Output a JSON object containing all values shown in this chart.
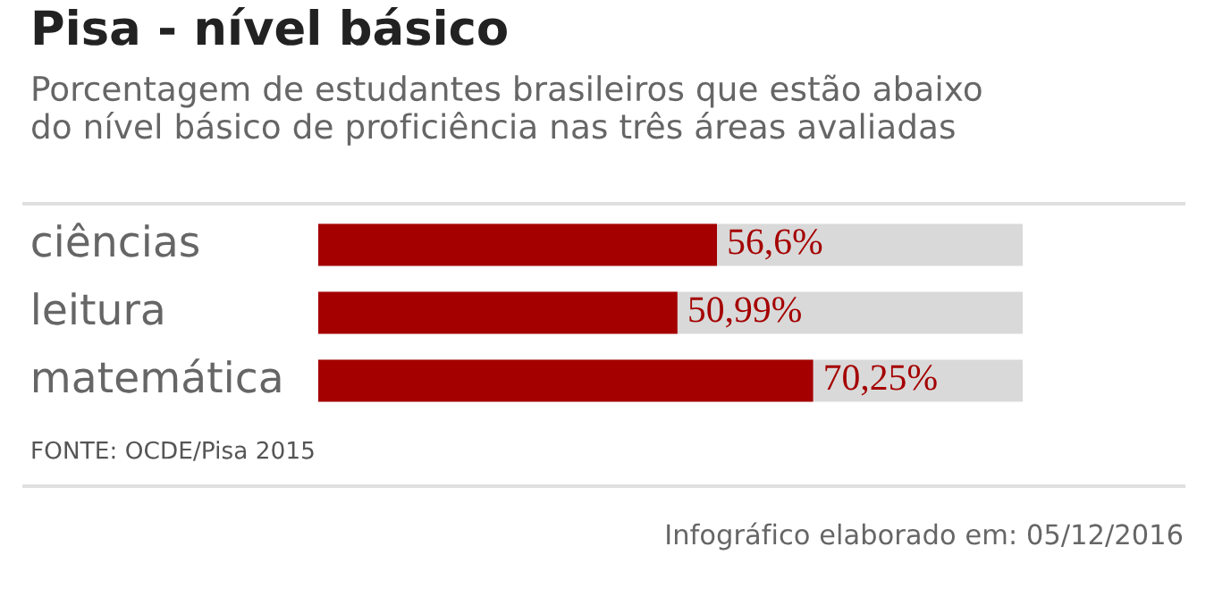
{
  "chart_data": {
    "type": "bar",
    "orientation": "horizontal",
    "title": "Pisa - nível básico",
    "subtitle": "Porcentagem de estudantes brasileiros que estão abaixo\ndo nível básico de proficiência nas três áreas avaliadas",
    "categories": [
      "ciências",
      "leitura",
      "matemática"
    ],
    "values": [
      56.6,
      50.99,
      70.25
    ],
    "color": "#a50000",
    "value_labels": [
      "56,6%",
      "50,99%",
      "70,25%"
    ],
    "xlim": [
      0,
      100
    ],
    "tick_labels": false,
    "grid": false,
    "legend": false,
    "annotations": [
      "FONTE: OCDE/Pisa 2015",
      "Infográfico elaborado em: 05/12/2016"
    ]
  }
}
